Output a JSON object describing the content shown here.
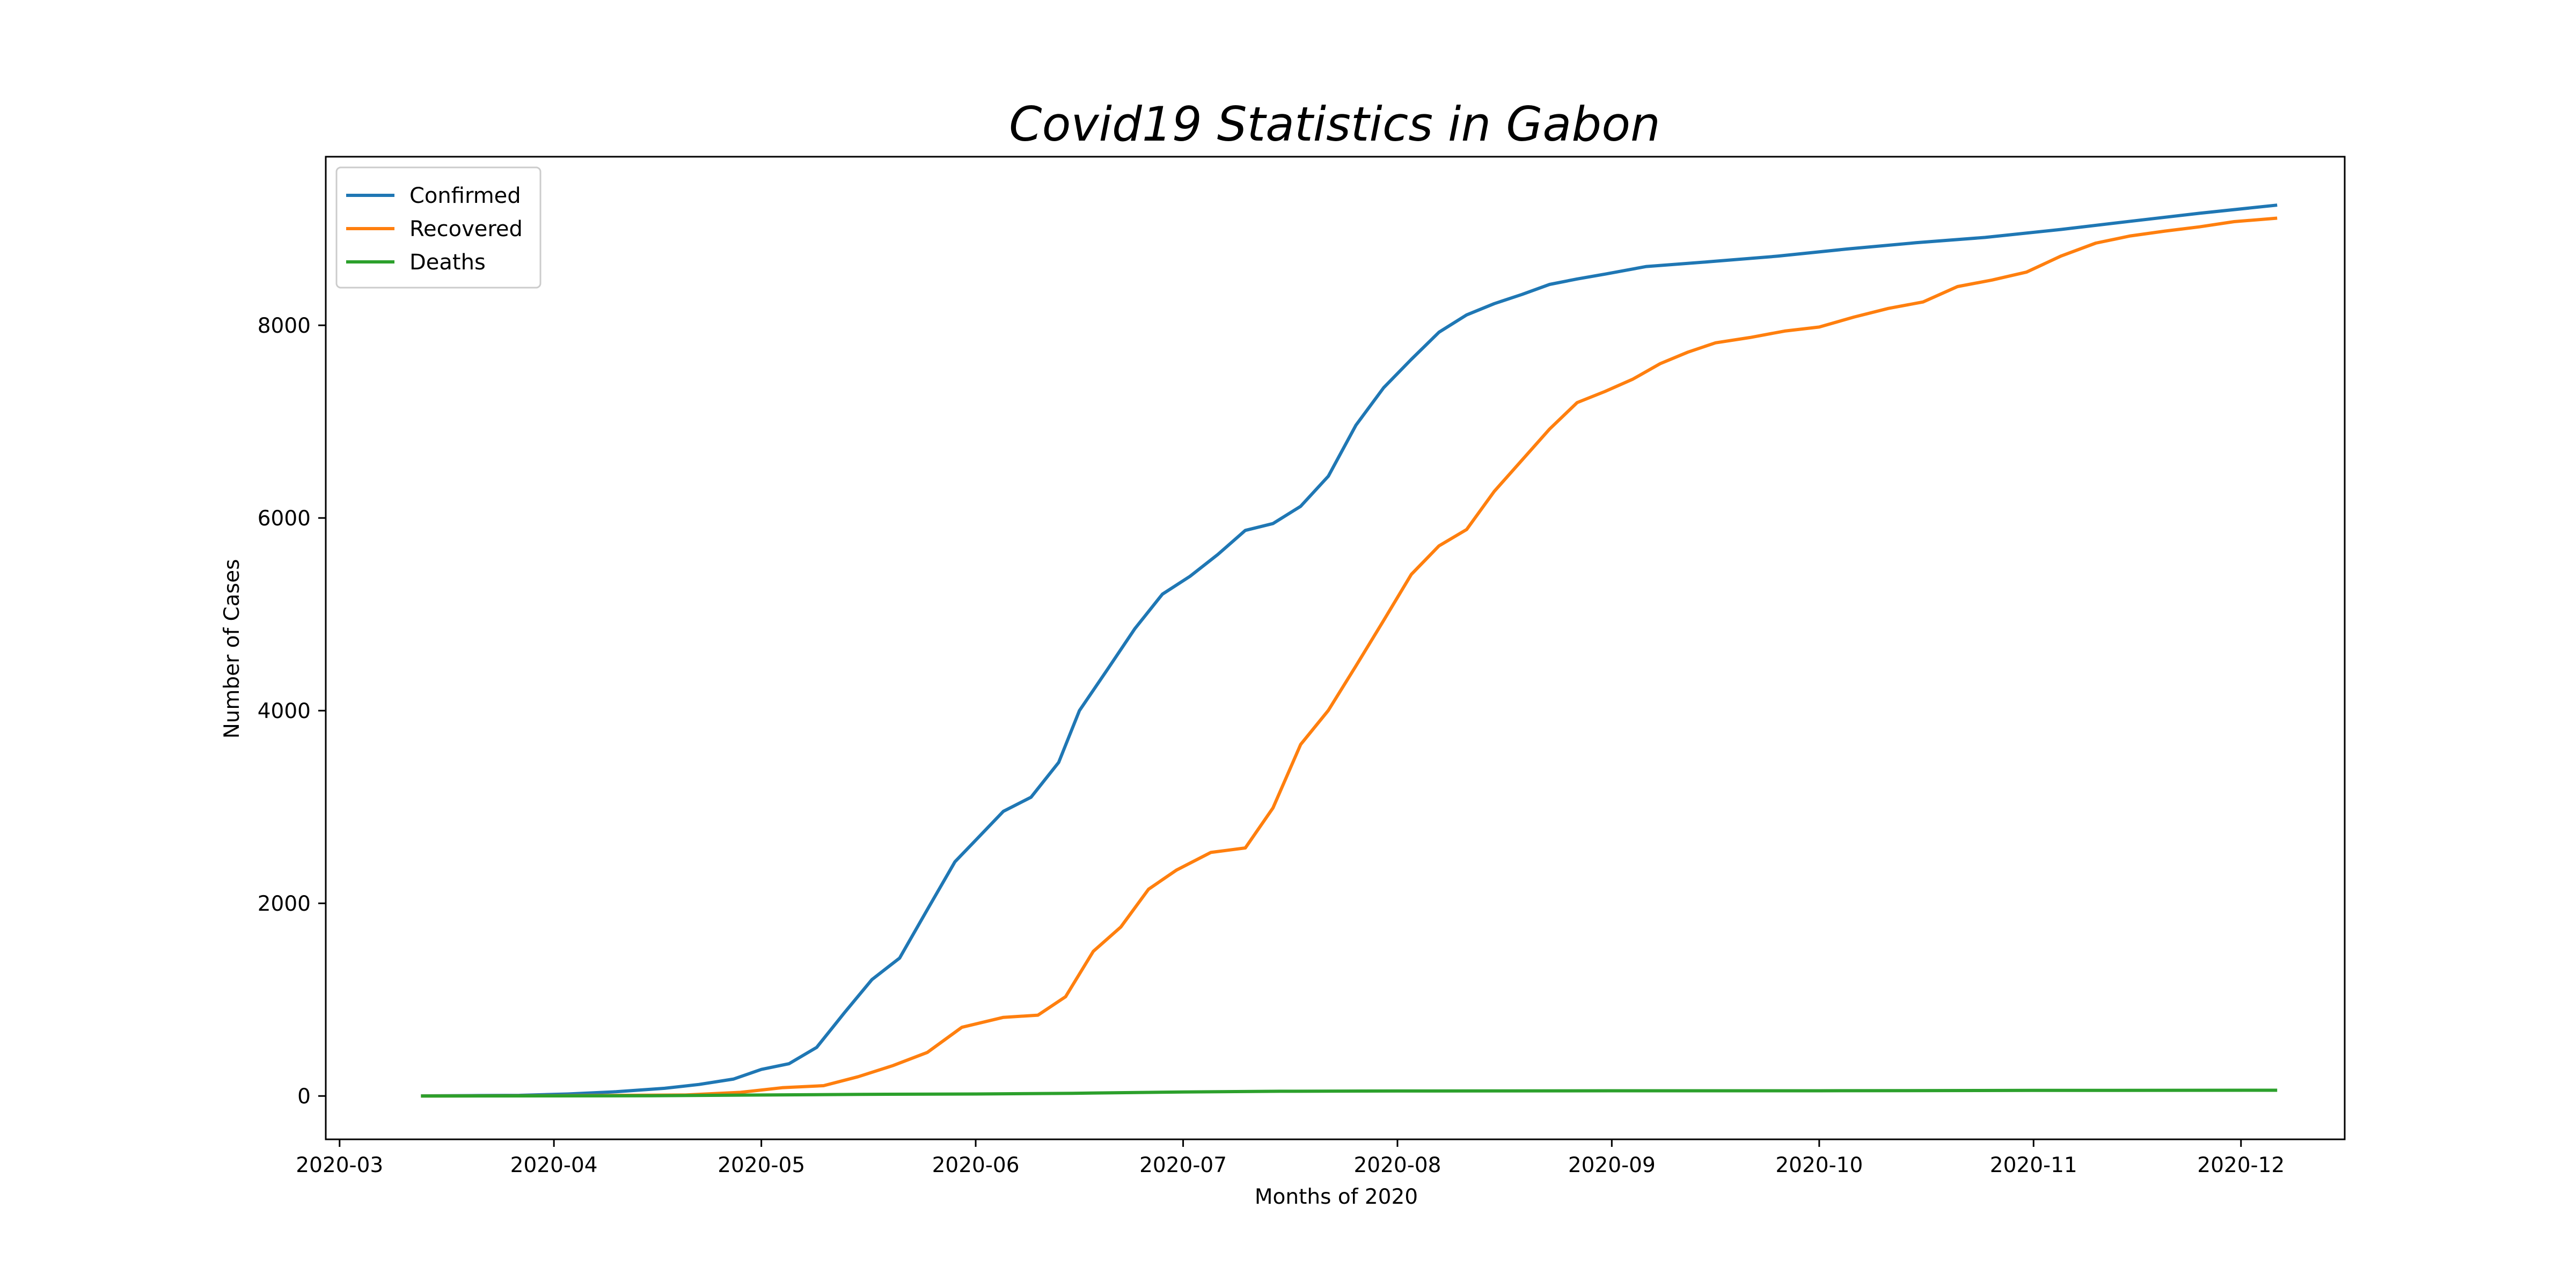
{
  "chart_data": {
    "type": "line",
    "title": "Covid19 Statistics in Gabon",
    "xlabel": "Months of 2020",
    "ylabel": "Number of Cases",
    "x_ticks": [
      "2020-03",
      "2020-04",
      "2020-05",
      "2020-06",
      "2020-07",
      "2020-08",
      "2020-09",
      "2020-10",
      "2020-11",
      "2020-12"
    ],
    "y_ticks": [
      0,
      2000,
      4000,
      6000,
      8000
    ],
    "xlim": [
      "2020-02-28",
      "2020-12-16"
    ],
    "ylim": [
      -450,
      9750
    ],
    "grid": false,
    "legend": "top-left",
    "series": [
      {
        "name": "Confirmed",
        "color": "#1f77b4",
        "points": [
          [
            "2020-03-13",
            1
          ],
          [
            "2020-03-20",
            4
          ],
          [
            "2020-03-27",
            7
          ],
          [
            "2020-04-03",
            21
          ],
          [
            "2020-04-10",
            44
          ],
          [
            "2020-04-17",
            80
          ],
          [
            "2020-04-22",
            120
          ],
          [
            "2020-04-27",
            176
          ],
          [
            "2020-05-01",
            276
          ],
          [
            "2020-05-05",
            335
          ],
          [
            "2020-05-09",
            504
          ],
          [
            "2020-05-13",
            863
          ],
          [
            "2020-05-17",
            1209
          ],
          [
            "2020-05-21",
            1432
          ],
          [
            "2020-05-25",
            1934
          ],
          [
            "2020-05-29",
            2431
          ],
          [
            "2020-06-01",
            2655
          ],
          [
            "2020-06-05",
            2955
          ],
          [
            "2020-06-09",
            3101
          ],
          [
            "2020-06-13",
            3463
          ],
          [
            "2020-06-16",
            4000
          ],
          [
            "2020-06-20",
            4421
          ],
          [
            "2020-06-24",
            4849
          ],
          [
            "2020-06-28",
            5209
          ],
          [
            "2020-07-02",
            5394
          ],
          [
            "2020-07-06",
            5620
          ],
          [
            "2020-07-10",
            5871
          ],
          [
            "2020-07-14",
            5942
          ],
          [
            "2020-07-18",
            6121
          ],
          [
            "2020-07-22",
            6433
          ],
          [
            "2020-07-26",
            6964
          ],
          [
            "2020-07-30",
            7352
          ],
          [
            "2020-08-03",
            7646
          ],
          [
            "2020-08-07",
            7928
          ],
          [
            "2020-08-11",
            8108
          ],
          [
            "2020-08-15",
            8225
          ],
          [
            "2020-08-19",
            8320
          ],
          [
            "2020-08-23",
            8424
          ],
          [
            "2020-08-27",
            8481
          ],
          [
            "2020-08-31",
            8531
          ],
          [
            "2020-09-06",
            8610
          ],
          [
            "2020-09-15",
            8659
          ],
          [
            "2020-09-25",
            8718
          ],
          [
            "2020-10-05",
            8792
          ],
          [
            "2020-10-15",
            8857
          ],
          [
            "2020-10-25",
            8912
          ],
          [
            "2020-11-05",
            8995
          ],
          [
            "2020-11-15",
            9080
          ],
          [
            "2020-11-25",
            9163
          ],
          [
            "2020-12-06",
            9246
          ]
        ]
      },
      {
        "name": "Recovered",
        "color": "#ff7f0e",
        "points": [
          [
            "2020-03-13",
            0
          ],
          [
            "2020-04-01",
            3
          ],
          [
            "2020-04-20",
            10
          ],
          [
            "2020-04-28",
            38
          ],
          [
            "2020-05-04",
            86
          ],
          [
            "2020-05-10",
            107
          ],
          [
            "2020-05-15",
            200
          ],
          [
            "2020-05-20",
            315
          ],
          [
            "2020-05-25",
            452
          ],
          [
            "2020-05-30",
            713
          ],
          [
            "2020-06-05",
            816
          ],
          [
            "2020-06-10",
            839
          ],
          [
            "2020-06-14",
            1030
          ],
          [
            "2020-06-18",
            1501
          ],
          [
            "2020-06-22",
            1755
          ],
          [
            "2020-06-26",
            2146
          ],
          [
            "2020-06-30",
            2343
          ],
          [
            "2020-07-05",
            2528
          ],
          [
            "2020-07-10",
            2575
          ],
          [
            "2020-07-14",
            2990
          ],
          [
            "2020-07-18",
            3649
          ],
          [
            "2020-07-22",
            4002
          ],
          [
            "2020-07-26",
            4465
          ],
          [
            "2020-07-30",
            4936
          ],
          [
            "2020-08-03",
            5414
          ],
          [
            "2020-08-07",
            5710
          ],
          [
            "2020-08-11",
            5880
          ],
          [
            "2020-08-15",
            6276
          ],
          [
            "2020-08-19",
            6600
          ],
          [
            "2020-08-23",
            6923
          ],
          [
            "2020-08-27",
            7198
          ],
          [
            "2020-08-31",
            7313
          ],
          [
            "2020-09-04",
            7439
          ],
          [
            "2020-09-08",
            7602
          ],
          [
            "2020-09-12",
            7721
          ],
          [
            "2020-09-16",
            7818
          ],
          [
            "2020-09-21",
            7873
          ],
          [
            "2020-09-26",
            7940
          ],
          [
            "2020-10-01",
            7982
          ],
          [
            "2020-10-06",
            8085
          ],
          [
            "2020-10-11",
            8175
          ],
          [
            "2020-10-16",
            8242
          ],
          [
            "2020-10-21",
            8402
          ],
          [
            "2020-10-26",
            8470
          ],
          [
            "2020-10-31",
            8553
          ],
          [
            "2020-11-05",
            8720
          ],
          [
            "2020-11-10",
            8853
          ],
          [
            "2020-11-15",
            8928
          ],
          [
            "2020-11-20",
            8978
          ],
          [
            "2020-11-25",
            9022
          ],
          [
            "2020-11-30",
            9076
          ],
          [
            "2020-12-06",
            9111
          ]
        ]
      },
      {
        "name": "Deaths",
        "color": "#2ca02c",
        "points": [
          [
            "2020-03-13",
            0
          ],
          [
            "2020-04-01",
            1
          ],
          [
            "2020-04-15",
            3
          ],
          [
            "2020-05-01",
            10
          ],
          [
            "2020-05-15",
            17
          ],
          [
            "2020-06-01",
            21
          ],
          [
            "2020-06-15",
            28
          ],
          [
            "2020-07-01",
            42
          ],
          [
            "2020-07-15",
            49
          ],
          [
            "2020-08-01",
            52
          ],
          [
            "2020-08-15",
            53
          ],
          [
            "2020-09-01",
            54
          ],
          [
            "2020-10-01",
            54
          ],
          [
            "2020-11-01",
            58
          ],
          [
            "2020-12-06",
            60
          ]
        ]
      }
    ]
  }
}
